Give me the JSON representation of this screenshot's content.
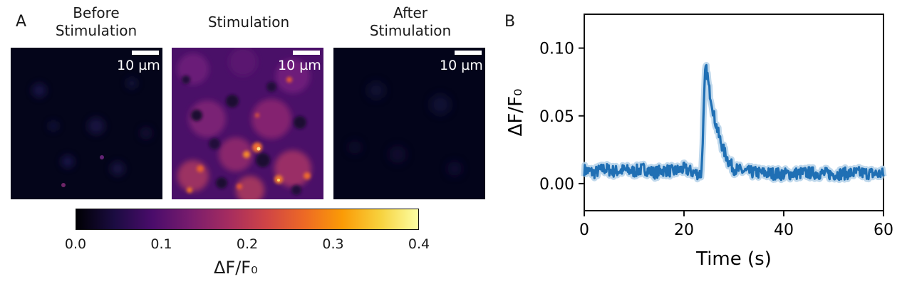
{
  "panel_a": {
    "letter": "A",
    "images": [
      {
        "title": "Before\nStimulation",
        "scalebar_label": "10 µm"
      },
      {
        "title": "Stimulation",
        "scalebar_label": "10 µm"
      },
      {
        "title": "After\nStimulation",
        "scalebar_label": "10 µm"
      }
    ],
    "colorbar": {
      "ticks": [
        "0.0",
        "0.1",
        "0.2",
        "0.3",
        "0.4"
      ],
      "label": "ΔF/F₀",
      "colormap_stops": [
        "#000004",
        "#1b0c41",
        "#4a0c6b",
        "#781c6d",
        "#a52c60",
        "#cf4446",
        "#ed6925",
        "#fb9b06",
        "#f7d13d",
        "#fcffa4"
      ]
    }
  },
  "panel_b": {
    "letter": "B"
  },
  "chart_data": {
    "type": "line",
    "xlabel": "Time (s)",
    "ylabel": "ΔF/F₀",
    "xlim": [
      0,
      60
    ],
    "ylim": [
      -0.02,
      0.125
    ],
    "xticks": [
      "0",
      "20",
      "40",
      "60"
    ],
    "yticks": [
      "0.00",
      "0.05",
      "0.10"
    ],
    "series": [
      {
        "color": "#1f6fb4",
        "band_color": "#b8d4ea",
        "x": [
          0,
          2,
          4,
          6,
          8,
          10,
          12,
          14,
          16,
          18,
          20,
          22,
          23.5,
          24,
          24.3,
          24.7,
          25,
          25.5,
          26,
          27,
          28,
          29,
          30,
          32,
          35,
          40,
          45,
          50,
          55,
          60
        ],
        "y": [
          0.01,
          0.008,
          0.011,
          0.009,
          0.01,
          0.009,
          0.011,
          0.008,
          0.01,
          0.009,
          0.011,
          0.008,
          0.007,
          0.058,
          0.086,
          0.08,
          0.07,
          0.062,
          0.05,
          0.035,
          0.024,
          0.016,
          0.011,
          0.009,
          0.008,
          0.007,
          0.008,
          0.007,
          0.008,
          0.007
        ]
      }
    ]
  }
}
